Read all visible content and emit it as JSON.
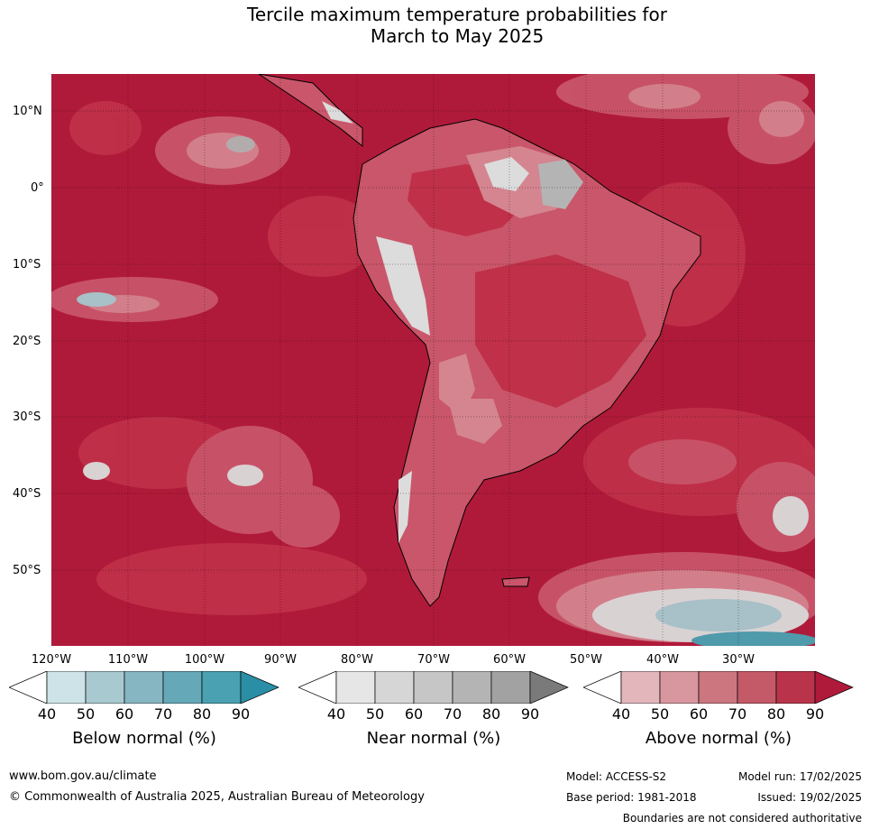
{
  "title_line1": "Tercile maximum temperature probabilities for",
  "title_line2": "March to May 2025",
  "lat_labels": [
    "10°N",
    "0°",
    "10°S",
    "20°S",
    "30°S",
    "40°S",
    "50°S"
  ],
  "lon_labels": [
    "120°W",
    "110°W",
    "100°W",
    "90°W",
    "80°W",
    "70°W",
    "60°W",
    "50°W",
    "40°W",
    "30°W"
  ],
  "colorbars": [
    {
      "title": "Below normal (%)",
      "ticks": [
        "40",
        "50",
        "60",
        "70",
        "80",
        "90"
      ],
      "colors": [
        "#ffffff",
        "#cde3e8",
        "#a8c9cf",
        "#86b6c2",
        "#65a9b8",
        "#4aa1b2",
        "#2a8fa6"
      ]
    },
    {
      "title": "Near normal (%)",
      "ticks": [
        "40",
        "50",
        "60",
        "70",
        "80",
        "90"
      ],
      "colors": [
        "#ffffff",
        "#e6e6e6",
        "#d6d6d6",
        "#c6c6c6",
        "#b4b4b4",
        "#a2a2a2",
        "#7a7a7a"
      ]
    },
    {
      "title": "Above normal (%)",
      "ticks": [
        "40",
        "50",
        "60",
        "70",
        "80",
        "90"
      ],
      "colors": [
        "#ffffff",
        "#e2b6bb",
        "#d8969e",
        "#cc7680",
        "#c45968",
        "#b9344a",
        "#b01a3a"
      ]
    }
  ],
  "footer": {
    "website": "www.bom.gov.au/climate",
    "copyright": "© Commonwealth of Australia 2025, Australian Bureau of Meteorology",
    "model": "Model: ACCESS-S2",
    "base_period": "Base period: 1981-2018",
    "model_run": "Model run: 17/02/2025",
    "issued": "Issued: 19/02/2025",
    "boundaries": "Boundaries are not considered authoritative"
  },
  "map_colors": {
    "ocean_high": "#b01a3a",
    "above_80": "#c03048",
    "above_70": "#c9566a",
    "above_60": "#d48590",
    "near_50": "#dcdcdc",
    "near_70": "#b4b4b4",
    "below_60": "#a8c9cf",
    "below_80": "#4aa1b2"
  }
}
